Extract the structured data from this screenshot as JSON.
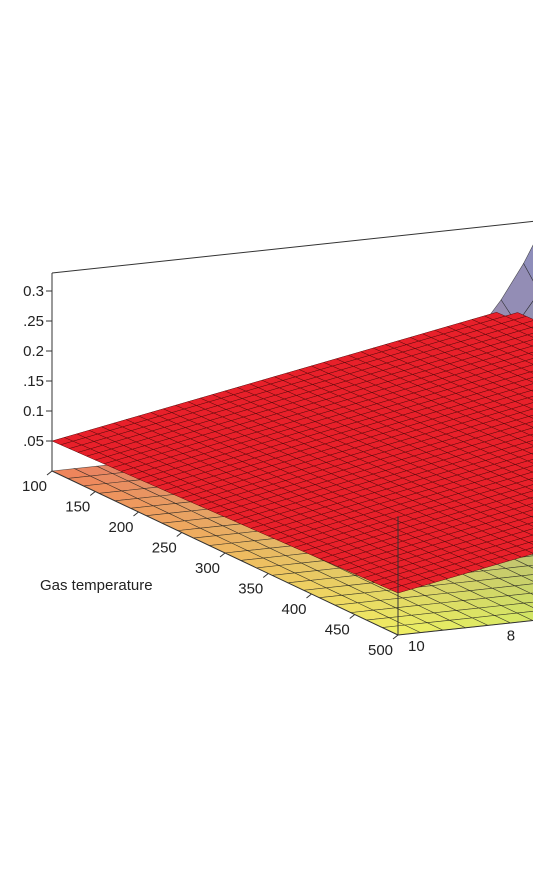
{
  "chart_data": {
    "type": "surface3d",
    "axes": {
      "x": {
        "label": "Gas temperature",
        "range": [
          100,
          500
        ],
        "ticks": [
          "100",
          "150",
          "200",
          "250",
          "300",
          "350",
          "400",
          "450",
          "500"
        ]
      },
      "y": {
        "label": "",
        "range": [
          10,
          0
        ],
        "ticks": [
          "8",
          "10"
        ]
      },
      "z": {
        "label": "",
        "range": [
          0,
          0.33
        ],
        "ticks": [
          ".05",
          "0.1",
          ".15",
          "0.2",
          ".25",
          "0.3"
        ]
      }
    },
    "surfaces": [
      {
        "name": "",
        "description_color": "temperature colormap (orange–yellow–green–blue)",
        "corner_values": {
          "x100_y10": 0.0,
          "x500_y10": 0.0,
          "x100_y0": 0.0,
          "peak_x100_y0": 0.33
        }
      },
      {
        "name": "",
        "color": "#e8202a",
        "plane_values": {
          "x100_y10": 0.05,
          "x100_y0": 0.2,
          "x500_y0": 0.22
        }
      }
    ],
    "box": true,
    "grid": false,
    "legend": "none"
  },
  "colors": {
    "plane": "#e8202a",
    "mesh": "#1a1a1a",
    "axis": "#333333"
  }
}
